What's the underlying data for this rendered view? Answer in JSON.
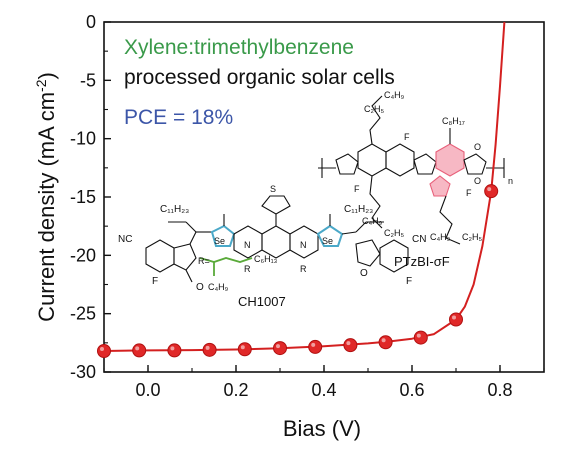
{
  "chart_data": {
    "type": "line",
    "xlabel": "Bias (V)",
    "ylabel_main": "Current density (mA cm",
    "ylabel_sup": "-2",
    "ylabel_close": ")",
    "xlim": [
      -0.1,
      0.9
    ],
    "ylim": [
      -30,
      0
    ],
    "x_ticks": [
      0.0,
      0.2,
      0.4,
      0.6,
      0.8
    ],
    "x_tick_labels": [
      "0.0",
      "0.2",
      "0.4",
      "0.6",
      "0.8"
    ],
    "y_ticks": [
      0,
      -5,
      -10,
      -15,
      -20,
      -25,
      -30
    ],
    "y_tick_labels": [
      "0",
      "-5",
      "-10",
      "-15",
      "-20",
      "-25",
      "-30"
    ],
    "grid": false,
    "colors": {
      "curve": "#d42020",
      "marker_fill": "#e02828",
      "marker_edge": "#b01010",
      "green_text": "#3a9a4a",
      "blue_text": "#3c56a8",
      "pink_ring": "#e8607a",
      "teal_ring": "#4aa8c8",
      "green_chain": "#5aaa3a"
    },
    "series": [
      {
        "x": [
          -0.1,
          -0.02,
          0.06,
          0.14,
          0.22,
          0.3,
          0.38,
          0.46,
          0.54,
          0.62,
          0.7,
          0.78
        ],
        "y": [
          -28.2,
          -28.15,
          -28.15,
          -28.1,
          -28.05,
          -27.95,
          -27.85,
          -27.7,
          -27.45,
          -27.05,
          -25.5,
          -14.5
        ],
        "curve_x": [
          -0.1,
          0.0,
          0.1,
          0.2,
          0.3,
          0.4,
          0.5,
          0.55,
          0.6,
          0.65,
          0.7,
          0.72,
          0.74,
          0.76,
          0.78,
          0.79,
          0.8,
          0.81
        ],
        "curve_y": [
          -28.2,
          -28.15,
          -28.12,
          -28.07,
          -27.97,
          -27.8,
          -27.55,
          -27.38,
          -27.15,
          -26.75,
          -25.5,
          -24.4,
          -22.5,
          -19.2,
          -14.5,
          -10.5,
          -5.5,
          0.0
        ]
      }
    ],
    "annotations": {
      "line1": "Xylene:trimethylbenzene",
      "line2": "processed organic solar cells",
      "line3": "PCE = 18%"
    },
    "molecules": {
      "acceptor_name": "CH1007",
      "polymer_name": "PTzBI-σF",
      "labels": {
        "c11h23": "C₁₁H₂₃",
        "nc": "NC",
        "cn": "CN",
        "f": "F",
        "o": "O",
        "se": "Se",
        "n": "N",
        "s": "S",
        "r": "R",
        "r_eq": "R=",
        "c6h13": "C₆H₁₃",
        "c4h9": "C₄H₉",
        "c2h5": "C₂H₅",
        "c8h17": "C₈H₁₇",
        "sub_n": "n"
      }
    }
  }
}
